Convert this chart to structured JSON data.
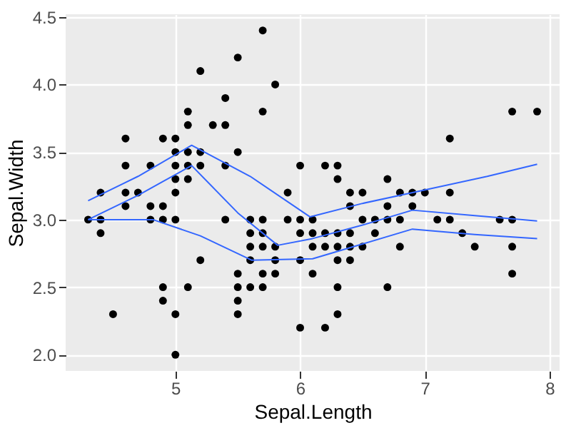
{
  "chart_data": {
    "type": "scatter",
    "xlabel": "Sepal.Length",
    "ylabel": "Sepal.Width",
    "xlim": [
      4.12,
      8.08
    ],
    "ylim": [
      1.88,
      4.52
    ],
    "xticks": [
      5,
      6,
      7,
      8
    ],
    "yticks": [
      {
        "value": 2,
        "label": "2.0"
      },
      {
        "value": 2.5,
        "label": "2.5"
      },
      {
        "value": 3,
        "label": "3.0"
      },
      {
        "value": 3.5,
        "label": "3.5"
      },
      {
        "value": 4,
        "label": "4.0"
      },
      {
        "value": 4.5,
        "label": "4.5"
      }
    ],
    "grid": true,
    "marker": "circle",
    "series": [
      {
        "color": "#000000",
        "x": [
          5.1,
          4.9,
          4.7,
          4.6,
          5.0,
          5.4,
          4.6,
          5.0,
          4.4,
          4.9,
          5.4,
          4.8,
          4.8,
          4.3,
          5.8,
          5.7,
          5.7,
          5.1,
          5.4,
          5.1,
          4.6,
          5.1,
          5.0,
          5.2,
          5.2,
          4.8,
          5.2,
          5.5,
          5.0,
          5.5,
          4.9,
          4.4,
          5.1,
          5.0,
          4.5,
          4.4,
          4.6,
          5.3,
          5.0,
          7.0,
          6.4,
          6.9,
          5.5,
          6.5,
          5.7,
          6.3,
          4.9,
          6.6,
          5.2,
          5.0,
          5.9,
          6.0,
          6.1,
          5.6,
          6.7,
          5.6,
          5.8,
          6.2,
          5.6,
          5.9,
          6.1,
          6.3,
          6.4,
          6.6,
          6.8,
          6.7,
          6.0,
          5.7,
          5.5,
          6.0,
          5.4,
          6.0,
          6.3,
          5.5,
          5.5,
          6.1,
          5.8,
          5.0,
          5.6,
          5.7,
          5.7,
          6.2,
          5.1,
          7.1,
          6.3,
          6.5,
          7.6,
          4.9,
          7.3,
          6.7,
          7.2,
          6.5,
          6.4,
          6.8,
          5.7,
          5.8,
          7.7,
          7.7,
          6.9,
          5.6,
          7.7,
          6.3,
          6.7,
          7.2,
          6.2,
          6.4,
          7.2,
          7.4,
          7.9,
          6.3,
          6.1,
          7.7,
          6.3,
          6.4,
          6.0,
          6.8,
          6.2
        ],
        "values": [
          3.5,
          3.0,
          3.2,
          3.1,
          3.6,
          3.9,
          3.4,
          3.4,
          2.9,
          3.1,
          3.7,
          3.4,
          3.0,
          3.0,
          4.0,
          4.4,
          3.8,
          3.8,
          3.4,
          3.7,
          3.6,
          3.3,
          3.0,
          3.5,
          3.4,
          3.1,
          4.1,
          4.2,
          3.2,
          3.5,
          3.6,
          3.0,
          3.4,
          3.5,
          2.3,
          3.2,
          3.2,
          3.7,
          3.3,
          3.2,
          3.2,
          3.1,
          2.3,
          2.8,
          2.8,
          3.3,
          2.4,
          2.9,
          2.7,
          2.0,
          3.0,
          2.2,
          2.9,
          2.9,
          3.1,
          3.0,
          2.7,
          2.2,
          2.5,
          3.2,
          2.8,
          2.5,
          2.9,
          3.0,
          2.8,
          3.0,
          2.9,
          2.6,
          2.4,
          2.7,
          3.0,
          3.4,
          2.3,
          2.5,
          2.6,
          3.0,
          2.6,
          2.3,
          2.7,
          3.0,
          2.9,
          2.9,
          2.5,
          3.0,
          2.9,
          3.0,
          3.0,
          2.5,
          2.9,
          2.5,
          3.6,
          3.2,
          2.7,
          3.0,
          2.5,
          2.8,
          3.8,
          2.6,
          3.2,
          2.8,
          2.8,
          2.7,
          3.3,
          3.2,
          2.8,
          2.8,
          3.0,
          2.8,
          3.8,
          2.8,
          2.6,
          3.0,
          3.4,
          3.1,
          3.0,
          3.2,
          3.4
        ]
      },
      {
        "type": "line",
        "color": "#3366ff",
        "marker": "none",
        "x": [
          4.3,
          4.7,
          5.13,
          5.6,
          6.08,
          6.5,
          7.0,
          7.5,
          7.9
        ],
        "values": [
          3.14,
          3.32,
          3.55,
          3.32,
          3.02,
          3.12,
          3.22,
          3.32,
          3.41
        ]
      },
      {
        "type": "line",
        "color": "#3366ff",
        "marker": "none",
        "x": [
          4.3,
          4.7,
          5.13,
          5.5,
          5.82,
          6.1,
          6.5,
          6.9,
          7.4,
          7.9
        ],
        "values": [
          3.0,
          3.18,
          3.4,
          3.05,
          2.81,
          2.86,
          2.96,
          3.07,
          3.03,
          2.99
        ]
      },
      {
        "type": "line",
        "color": "#3366ff",
        "marker": "none",
        "x": [
          4.3,
          4.82,
          5.2,
          5.61,
          6.1,
          6.5,
          6.9,
          7.4,
          7.9
        ],
        "values": [
          3.0,
          3.0,
          2.88,
          2.7,
          2.71,
          2.82,
          2.93,
          2.89,
          2.86
        ]
      }
    ]
  }
}
